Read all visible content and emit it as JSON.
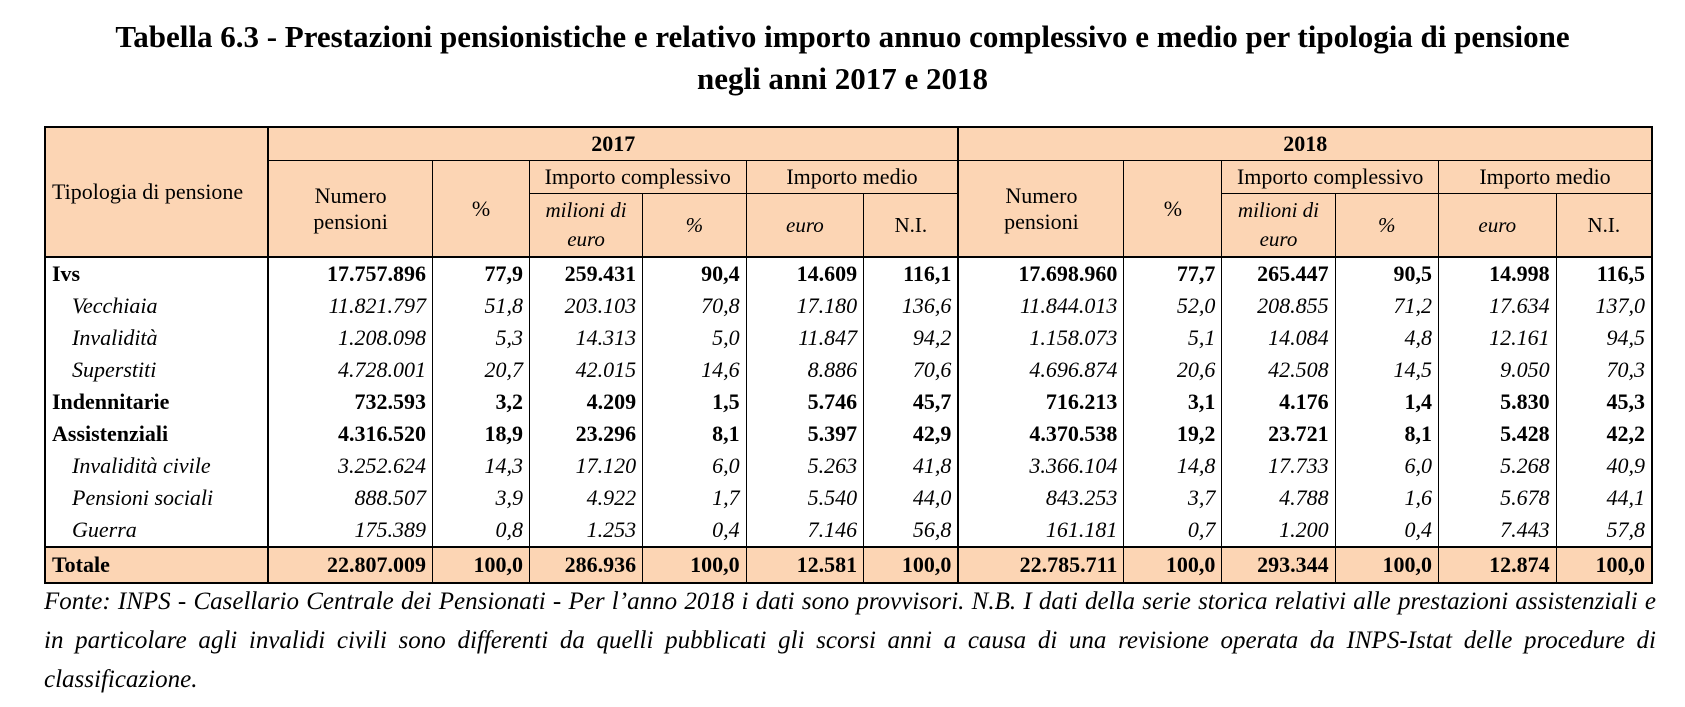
{
  "title": {
    "line1": "Tabella 6.3 - Prestazioni pensionistiche e relativo importo annuo complessivo e medio per tipologia di pensione",
    "line2": "negli anni 2017 e 2018"
  },
  "headers": {
    "tipologia": "Tipologia di pensione",
    "years": [
      "2017",
      "2018"
    ],
    "numero_pensioni_1": "Numero",
    "numero_pensioni_2": "pensioni",
    "percent": "%",
    "importo_complessivo": "Importo complessivo",
    "importo_medio": "Importo medio",
    "milioni_1": "milioni di",
    "milioni_2": "euro",
    "euro": "euro",
    "ni": "N.I."
  },
  "rows": [
    {
      "label": "Ivs",
      "kind": "main",
      "v2017": [
        "17.757.896",
        "77,9",
        "259.431",
        "90,4",
        "14.609",
        "116,1"
      ],
      "v2018": [
        "17.698.960",
        "77,7",
        "265.447",
        "90,5",
        "14.998",
        "116,5"
      ]
    },
    {
      "label": "Vecchiaia",
      "kind": "sub",
      "v2017": [
        "11.821.797",
        "51,8",
        "203.103",
        "70,8",
        "17.180",
        "136,6"
      ],
      "v2018": [
        "11.844.013",
        "52,0",
        "208.855",
        "71,2",
        "17.634",
        "137,0"
      ]
    },
    {
      "label": "Invalidità",
      "kind": "sub",
      "v2017": [
        "1.208.098",
        "5,3",
        "14.313",
        "5,0",
        "11.847",
        "94,2"
      ],
      "v2018": [
        "1.158.073",
        "5,1",
        "14.084",
        "4,8",
        "12.161",
        "94,5"
      ]
    },
    {
      "label": "Superstiti",
      "kind": "sub",
      "v2017": [
        "4.728.001",
        "20,7",
        "42.015",
        "14,6",
        "8.886",
        "70,6"
      ],
      "v2018": [
        "4.696.874",
        "20,6",
        "42.508",
        "14,5",
        "9.050",
        "70,3"
      ]
    },
    {
      "label": "Indennitarie",
      "kind": "main",
      "v2017": [
        "732.593",
        "3,2",
        "4.209",
        "1,5",
        "5.746",
        "45,7"
      ],
      "v2018": [
        "716.213",
        "3,1",
        "4.176",
        "1,4",
        "5.830",
        "45,3"
      ]
    },
    {
      "label": "Assistenziali",
      "kind": "main",
      "v2017": [
        "4.316.520",
        "18,9",
        "23.296",
        "8,1",
        "5.397",
        "42,9"
      ],
      "v2018": [
        "4.370.538",
        "19,2",
        "23.721",
        "8,1",
        "5.428",
        "42,2"
      ]
    },
    {
      "label": "Invalidità civile",
      "kind": "sub",
      "v2017": [
        "3.252.624",
        "14,3",
        "17.120",
        "6,0",
        "5.263",
        "41,8"
      ],
      "v2018": [
        "3.366.104",
        "14,8",
        "17.733",
        "6,0",
        "5.268",
        "40,9"
      ]
    },
    {
      "label": "Pensioni sociali",
      "kind": "sub",
      "v2017": [
        "888.507",
        "3,9",
        "4.922",
        "1,7",
        "5.540",
        "44,0"
      ],
      "v2018": [
        "843.253",
        "3,7",
        "4.788",
        "1,6",
        "5.678",
        "44,1"
      ]
    },
    {
      "label": "Guerra",
      "kind": "sub",
      "v2017": [
        "175.389",
        "0,8",
        "1.253",
        "0,4",
        "7.146",
        "56,8"
      ],
      "v2018": [
        "161.181",
        "0,7",
        "1.200",
        "0,4",
        "7.443",
        "57,8"
      ]
    }
  ],
  "total": {
    "label": "Totale",
    "v2017": [
      "22.807.009",
      "100,0",
      "286.936",
      "100,0",
      "12.581",
      "100,0"
    ],
    "v2018": [
      "22.785.711",
      "100,0",
      "293.344",
      "100,0",
      "12.874",
      "100,0"
    ]
  },
  "note": "Fonte: INPS - Casellario Centrale dei Pensionati - Per l’anno 2018 i dati sono provvisori. N.B. I dati della serie storica relativi alle prestazioni assistenziali e in particolare agli invalidi civili sono differenti da quelli pubblicati gli scorsi anni a causa di una revisione operata da INPS-Istat delle procedure di classificazione.",
  "colors": {
    "header_fill": "#fcd5b4",
    "text": "#000000",
    "border": "#000000"
  }
}
